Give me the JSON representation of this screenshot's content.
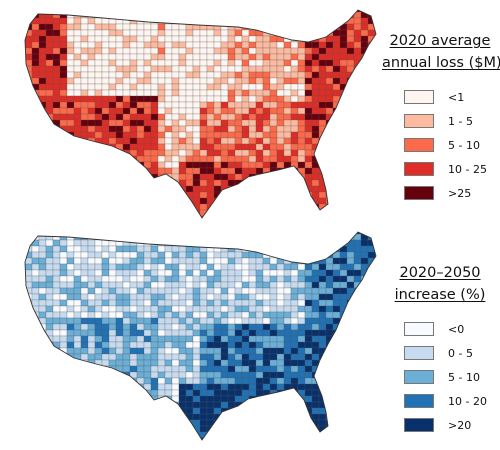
{
  "panels": [
    {
      "id": "loss",
      "legend": {
        "title_lines": [
          "2020 average",
          "annual loss ($M)"
        ],
        "classes": [
          {
            "label": "<1",
            "color": "#fff5f0"
          },
          {
            "label": "1 - 5",
            "color": "#fcbba1"
          },
          {
            "label": "5 - 10",
            "color": "#fb6a4a"
          },
          {
            "label": "10 - 25",
            "color": "#de2d26"
          },
          {
            "label": ">25",
            "color": "#67000d"
          }
        ]
      },
      "map_pattern": {
        "west_coast": 3,
        "southwest": 3,
        "great_plains": 0,
        "midwest": 1,
        "south": 2,
        "gulf_coast": 3,
        "east_coast": 3,
        "florida": 3
      }
    },
    {
      "id": "increase",
      "legend": {
        "title_lines": [
          "2020–2050",
          "increase (%)"
        ],
        "classes": [
          {
            "label": "<0",
            "color": "#f7fbff"
          },
          {
            "label": "0 - 5",
            "color": "#c6dbef"
          },
          {
            "label": "5 - 10",
            "color": "#6baed6"
          },
          {
            "label": "10 - 20",
            "color": "#2171b5"
          },
          {
            "label": ">20",
            "color": "#08306b"
          }
        ]
      },
      "map_pattern": {
        "west_coast": 1,
        "southwest": 2,
        "great_plains": 1,
        "midwest": 1,
        "south": 3,
        "gulf_coast": 4,
        "east_coast": 3,
        "florida": 4
      }
    }
  ]
}
